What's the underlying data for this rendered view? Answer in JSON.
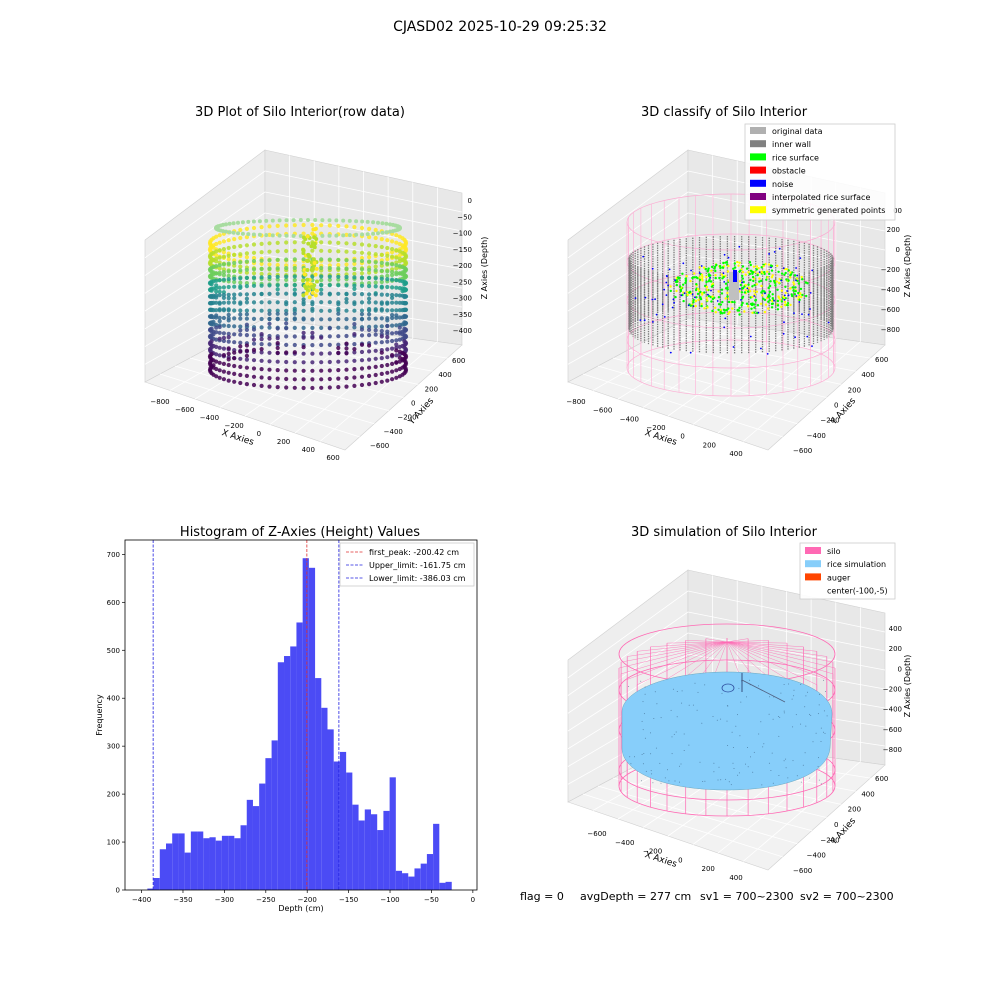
{
  "figure": {
    "suptitle": "CJASD02 2025-10-29 09:25:32",
    "footer": {
      "flag": "flag = 0",
      "avg_depth": "avgDepth = 277 cm",
      "sv1": "sv1 = 700~2300",
      "sv2": "sv2 = 700~2300"
    }
  },
  "colors": {
    "hist_bar": "#4b4bf5",
    "first_peak": "#e03030",
    "limit": "#2020e0",
    "silo": "#ff69b4",
    "rice_simulation": "#87cefa",
    "auger": "#ff4500",
    "original_data": "#b0b0b0",
    "inner_wall": "#808080",
    "rice_surface": "#00ff00",
    "obstacle": "#ff0000",
    "noise": "#0000ff",
    "interpolated_rice_surface": "#800080",
    "symmetric_generated_points": "#ffff00"
  },
  "panel1": {
    "title": "3D Plot of Silo Interior(row data)",
    "xlabel": "X Axies",
    "ylabel": "Y Axies",
    "zlabel": "Z Axies (Depth)",
    "x_ticks": [
      "−800",
      "−600",
      "−400",
      "−200",
      "0",
      "200",
      "400",
      "600"
    ],
    "y_ticks": [
      "−600",
      "−400",
      "−200",
      "0",
      "200",
      "400",
      "600"
    ],
    "z_ticks": [
      "0",
      "−50",
      "−100",
      "−150",
      "−200",
      "−250",
      "−300",
      "−350",
      "−400"
    ]
  },
  "panel2": {
    "title": "3D classify of Silo Interior",
    "xlabel": "X Axies",
    "ylabel": "Y Axies",
    "zlabel": "Z Axies (Depth)",
    "x_ticks": [
      "−800",
      "−600",
      "−400",
      "−200",
      "0",
      "200",
      "400"
    ],
    "y_ticks": [
      "−600",
      "−400",
      "−200",
      "0",
      "200",
      "400",
      "600"
    ],
    "z_ticks": [
      "200",
      "0",
      "−200",
      "−400",
      "−600",
      "−800"
    ],
    "z_ticks_partial": [
      "00"
    ],
    "legend": [
      {
        "label": "original data",
        "color": "#b0b0b0"
      },
      {
        "label": "inner wall",
        "color": "#808080"
      },
      {
        "label": "rice surface",
        "color": "#00ff00"
      },
      {
        "label": "obstacle",
        "color": "#ff0000"
      },
      {
        "label": "noise",
        "color": "#0000ff"
      },
      {
        "label": "interpolated rice surface",
        "color": "#800080"
      },
      {
        "label": "symmetric generated points",
        "color": "#ffff00"
      }
    ]
  },
  "panel4": {
    "title": "3D simulation of Silo Interior",
    "xlabel": "X Axies",
    "ylabel": "Y Axies",
    "zlabel": "Z Axies (Depth)",
    "x_ticks": [
      "−600",
      "−400",
      "−200",
      "0",
      "200",
      "400"
    ],
    "y_ticks": [
      "−600",
      "−400",
      "−200",
      "0",
      "200",
      "400",
      "600"
    ],
    "z_ticks": [
      "400",
      "200",
      "0",
      "−200",
      "−400",
      "−600",
      "−800"
    ],
    "legend": [
      {
        "label": "silo",
        "color": "#ff69b4"
      },
      {
        "label": "rice simulation",
        "color": "#87cefa"
      },
      {
        "label": "auger",
        "color": "#ff4500"
      },
      {
        "label": "center(-100,-5)",
        "color": ""
      }
    ]
  },
  "chart_data": {
    "type": "bar",
    "title": "Histogram of Z-Axies (Height) Values",
    "xlabel": "Depth (cm)",
    "ylabel": "Frequency",
    "xlim": [
      -420,
      5
    ],
    "ylim": [
      0,
      730
    ],
    "x_ticks": [
      -400,
      -350,
      -300,
      -250,
      -200,
      -150,
      -100,
      -50,
      0
    ],
    "y_ticks": [
      0,
      100,
      200,
      300,
      400,
      500,
      600,
      700
    ],
    "bin_width": 7.5,
    "bins": [
      {
        "x0": -393.0,
        "value": 3
      },
      {
        "x0": -385.5,
        "value": 25
      },
      {
        "x0": -378.0,
        "value": 85
      },
      {
        "x0": -370.5,
        "value": 97
      },
      {
        "x0": -363.0,
        "value": 118
      },
      {
        "x0": -355.5,
        "value": 118
      },
      {
        "x0": -348.0,
        "value": 78
      },
      {
        "x0": -340.5,
        "value": 122
      },
      {
        "x0": -333.0,
        "value": 122
      },
      {
        "x0": -325.5,
        "value": 108
      },
      {
        "x0": -318.0,
        "value": 110
      },
      {
        "x0": -310.5,
        "value": 103
      },
      {
        "x0": -303.0,
        "value": 113
      },
      {
        "x0": -295.5,
        "value": 113
      },
      {
        "x0": -288.0,
        "value": 108
      },
      {
        "x0": -280.5,
        "value": 135
      },
      {
        "x0": -273.0,
        "value": 188
      },
      {
        "x0": -265.5,
        "value": 175
      },
      {
        "x0": -258.0,
        "value": 222
      },
      {
        "x0": -250.5,
        "value": 275
      },
      {
        "x0": -243.0,
        "value": 312
      },
      {
        "x0": -235.5,
        "value": 475
      },
      {
        "x0": -228.0,
        "value": 488
      },
      {
        "x0": -220.5,
        "value": 508
      },
      {
        "x0": -213.0,
        "value": 558
      },
      {
        "x0": -205.5,
        "value": 692
      },
      {
        "x0": -198.0,
        "value": 672
      },
      {
        "x0": -190.5,
        "value": 442
      },
      {
        "x0": -183.0,
        "value": 380
      },
      {
        "x0": -175.5,
        "value": 335
      },
      {
        "x0": -168.0,
        "value": 268
      },
      {
        "x0": -160.5,
        "value": 288
      },
      {
        "x0": -153.0,
        "value": 245
      },
      {
        "x0": -145.5,
        "value": 178
      },
      {
        "x0": -138.0,
        "value": 145
      },
      {
        "x0": -130.5,
        "value": 168
      },
      {
        "x0": -123.0,
        "value": 158
      },
      {
        "x0": -115.5,
        "value": 125
      },
      {
        "x0": -108.0,
        "value": 165
      },
      {
        "x0": -100.5,
        "value": 235
      },
      {
        "x0": -93.0,
        "value": 40
      },
      {
        "x0": -85.5,
        "value": 35
      },
      {
        "x0": -78.0,
        "value": 28
      },
      {
        "x0": -70.5,
        "value": 45
      },
      {
        "x0": -63.0,
        "value": 55
      },
      {
        "x0": -55.5,
        "value": 75
      },
      {
        "x0": -48.0,
        "value": 138
      },
      {
        "x0": -40.5,
        "value": 15
      },
      {
        "x0": -33.0,
        "value": 17
      }
    ],
    "lines": [
      {
        "name": "first_peak: -200.42 cm",
        "x": -200.42,
        "color": "#e03030"
      },
      {
        "name": "Upper_limit: -161.75 cm",
        "x": -161.75,
        "color": "#2020e0"
      },
      {
        "name": "Lower_limit: -386.03 cm",
        "x": -386.03,
        "color": "#2020e0"
      }
    ],
    "legend_position": "upper right",
    "grid": false
  }
}
